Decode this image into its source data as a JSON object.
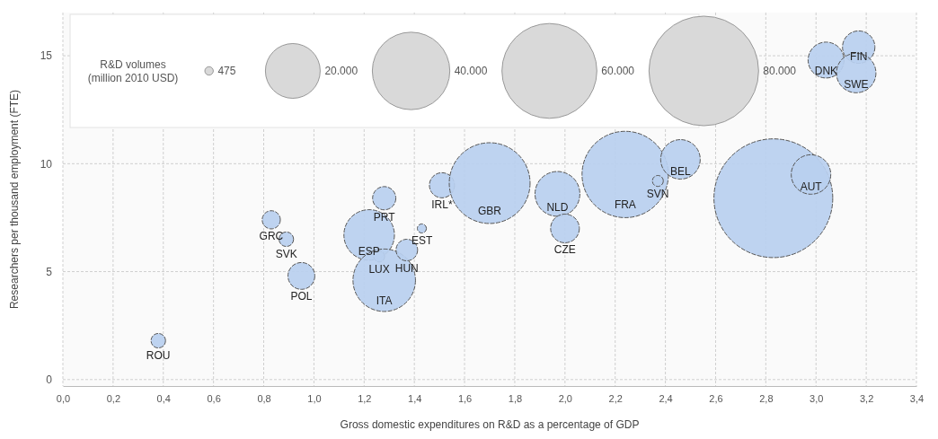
{
  "chart_data": {
    "type": "bubble",
    "xlabel": "Gross domestic expenditures on R&D as a percentage of GDP",
    "ylabel": "Researchers per thousand employment (FTE)",
    "legend_title": "R&D volumes\n(million 2010 USD)",
    "grid": true,
    "xlim": [
      0,
      3.4
    ],
    "ylim": [
      -0.3,
      17
    ],
    "xticks": [
      {
        "value": 0,
        "label": "0,0"
      },
      {
        "value": 0.2,
        "label": "0,2"
      },
      {
        "value": 0.4,
        "label": "0,4"
      },
      {
        "value": 0.6,
        "label": "0,6"
      },
      {
        "value": 0.8,
        "label": "0,8"
      },
      {
        "value": 1.0,
        "label": "1,0"
      },
      {
        "value": 1.2,
        "label": "1,2"
      },
      {
        "value": 1.4,
        "label": "1,4"
      },
      {
        "value": 1.6,
        "label": "1,6"
      },
      {
        "value": 1.8,
        "label": "1,8"
      },
      {
        "value": 2.0,
        "label": "2,0"
      },
      {
        "value": 2.2,
        "label": "2,2"
      },
      {
        "value": 2.4,
        "label": "2,4"
      },
      {
        "value": 2.6,
        "label": "2,6"
      },
      {
        "value": 2.8,
        "label": "2,8"
      },
      {
        "value": 3.0,
        "label": "3,0"
      },
      {
        "value": 3.2,
        "label": "3,2"
      },
      {
        "value": 3.4,
        "label": "3,4"
      }
    ],
    "yticks": [
      0,
      5,
      10,
      15
    ],
    "size_legend": [
      {
        "value": 475,
        "label": "475"
      },
      {
        "value": 20000,
        "label": "20.000"
      },
      {
        "value": 40000,
        "label": "40.000"
      },
      {
        "value": 60000,
        "label": "60.000"
      },
      {
        "value": 80000,
        "label": "80.000"
      }
    ],
    "series": [
      {
        "color": "#b9cfef",
        "x": [
          0.38,
          0.83,
          0.89,
          0.95,
          1.28,
          1.22,
          1.26,
          1.28,
          1.37,
          1.43,
          1.51,
          1.7,
          1.97,
          2.0,
          2.24,
          2.37,
          2.46,
          2.83,
          2.98,
          3.04,
          3.17,
          3.16
        ],
        "values": [
          1.8,
          7.4,
          6.5,
          4.8,
          8.4,
          6.7,
          5.7,
          4.6,
          6.0,
          7.0,
          9.0,
          9.1,
          8.6,
          7.0,
          9.5,
          9.2,
          10.2,
          8.4,
          9.5,
          14.8,
          15.4,
          14.2
        ],
        "sizes": [
          1400,
          2200,
          1400,
          4800,
          3600,
          17000,
          800,
          26000,
          3100,
          550,
          4200,
          43500,
          13400,
          5500,
          49700,
          800,
          10400,
          94000,
          10400,
          8600,
          7000,
          10400
        ]
      }
    ],
    "annotations": [
      {
        "text": "ROU",
        "x": 0.38,
        "y": 1.8
      },
      {
        "text": "GRC",
        "x": 0.83,
        "y": 7.4
      },
      {
        "text": "SVK",
        "x": 0.89,
        "y": 6.5
      },
      {
        "text": "POL",
        "x": 0.95,
        "y": 4.8
      },
      {
        "text": "PRT",
        "x": 1.28,
        "y": 8.4
      },
      {
        "text": "ESP",
        "x": 1.22,
        "y": 6.7
      },
      {
        "text": "LUX",
        "x": 1.26,
        "y": 5.7
      },
      {
        "text": "ITA",
        "x": 1.28,
        "y": 4.6
      },
      {
        "text": "HUN",
        "x": 1.37,
        "y": 6.0
      },
      {
        "text": "EST",
        "x": 1.43,
        "y": 7.0
      },
      {
        "text": "IRL*",
        "x": 1.51,
        "y": 9.0
      },
      {
        "text": "GBR",
        "x": 1.7,
        "y": 9.1
      },
      {
        "text": "NLD",
        "x": 1.97,
        "y": 8.6
      },
      {
        "text": "CZE",
        "x": 2.0,
        "y": 7.0
      },
      {
        "text": "FRA",
        "x": 2.24,
        "y": 9.5
      },
      {
        "text": "SVN",
        "x": 2.37,
        "y": 9.2
      },
      {
        "text": "BEL",
        "x": 2.46,
        "y": 10.2
      },
      {
        "text": "AUT",
        "x": 2.98,
        "y": 9.5
      },
      {
        "text": "DNK",
        "x": 3.04,
        "y": 14.8
      },
      {
        "text": "FIN",
        "x": 3.17,
        "y": 15.4
      },
      {
        "text": "SWE",
        "x": 3.16,
        "y": 14.2
      }
    ]
  }
}
